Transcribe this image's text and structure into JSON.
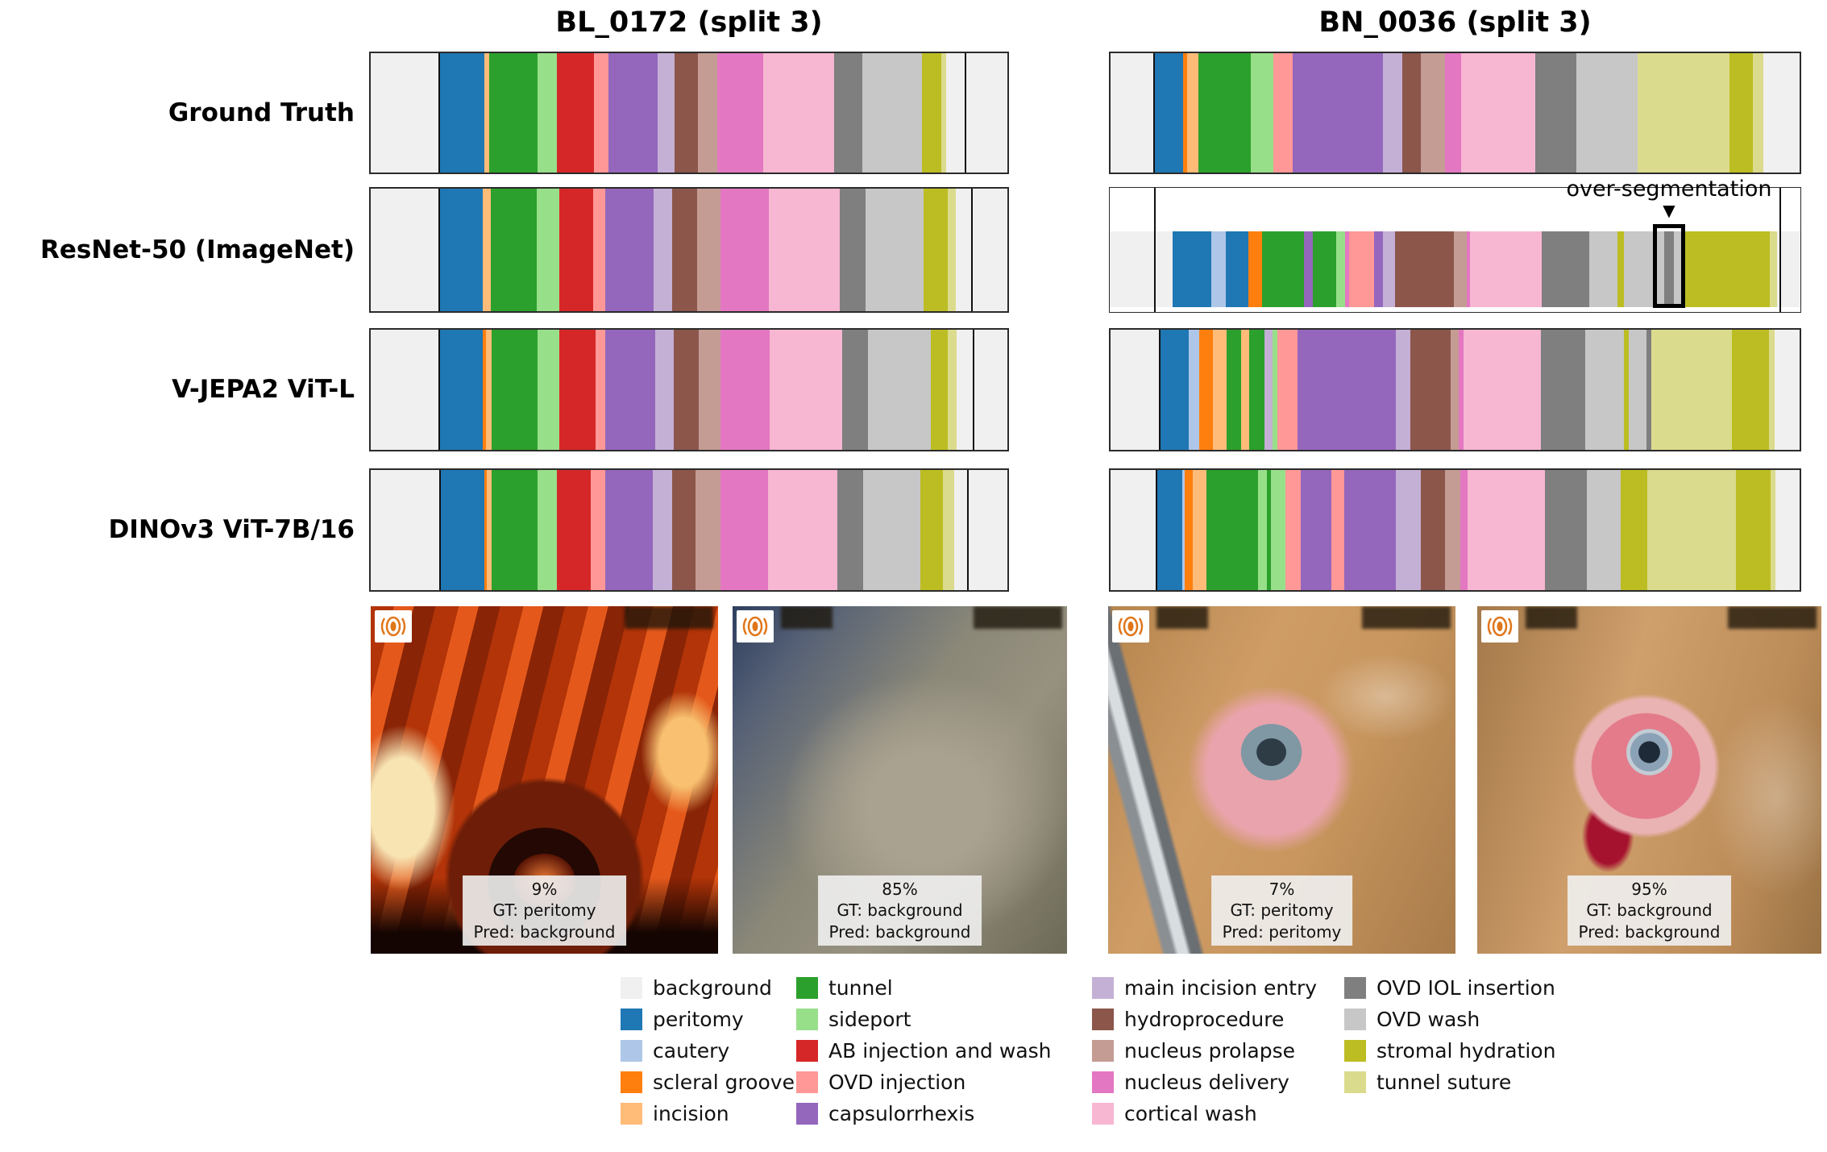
{
  "figure": {
    "columns": [
      {
        "id": "BL_0172",
        "title": "BL_0172 (split 3)"
      },
      {
        "id": "BN_0036",
        "title": "BN_0036 (split 3)"
      }
    ],
    "rows": [
      "Ground Truth",
      "ResNet-50 (ImageNet)",
      "V-JEPA2 ViT-L",
      "DINOv3 ViT-7B/16"
    ],
    "annotation": {
      "label": "over-segmentation",
      "marker": "▼"
    }
  },
  "phase_colors": {
    "bg": "#f0f0f0",
    "peritomy": "#1f77b4",
    "cautery": "#aec7e8",
    "scleral": "#ff7f0e",
    "incision": "#ffbb78",
    "tunnel": "#2ca02c",
    "sideport": "#98df8a",
    "ab": "#d62728",
    "ovd_inj": "#ff9896",
    "caps": "#9467bd",
    "main": "#c5b0d5",
    "hydro": "#8c564b",
    "prolapse": "#c49c94",
    "delivery": "#e377c2",
    "cortical": "#f7b6d2",
    "ovd_iol": "#7f7f7f",
    "ovd_wash": "#c7c7c7",
    "stromal": "#bcbd22",
    "suture": "#dbdb8d"
  },
  "legend": {
    "columns": [
      [
        {
          "key": "bg",
          "label": "background"
        },
        {
          "key": "peritomy",
          "label": "peritomy"
        },
        {
          "key": "cautery",
          "label": "cautery"
        },
        {
          "key": "scleral",
          "label": "scleral groove"
        },
        {
          "key": "incision",
          "label": "incision"
        }
      ],
      [
        {
          "key": "tunnel",
          "label": "tunnel"
        },
        {
          "key": "sideport",
          "label": "sideport"
        },
        {
          "key": "ab",
          "label": "AB injection and wash"
        },
        {
          "key": "ovd_inj",
          "label": "OVD injection"
        },
        {
          "key": "caps",
          "label": "capsulorrhexis"
        }
      ],
      [
        {
          "key": "main",
          "label": "main incision entry"
        },
        {
          "key": "hydro",
          "label": "hydroprocedure"
        },
        {
          "key": "prolapse",
          "label": "nucleus prolapse"
        },
        {
          "key": "delivery",
          "label": "nucleus delivery"
        },
        {
          "key": "cortical",
          "label": "cortical wash"
        }
      ],
      [
        {
          "key": "ovd_iol",
          "label": "OVD IOL insertion"
        },
        {
          "key": "ovd_wash",
          "label": "OVD wash"
        },
        {
          "key": "stromal",
          "label": "stromal hydration"
        },
        {
          "key": "suture",
          "label": "tunnel suture"
        }
      ]
    ]
  },
  "images": [
    {
      "pct": "9%",
      "gt": "GT: peritomy",
      "pred": "Pred: background"
    },
    {
      "pct": "85%",
      "gt": "GT: background",
      "pred": "Pred: background"
    },
    {
      "pct": "7%",
      "gt": "GT: peritomy",
      "pred": "Pred: peritomy"
    },
    {
      "pct": "95%",
      "gt": "GT: background",
      "pred": "Pred: background"
    }
  ],
  "chart_data": {
    "type": "bar",
    "subtype": "horizontal-phase-timeline",
    "title": "",
    "columns": [
      "BL_0172 (split 3)",
      "BN_0036 (split 3)"
    ],
    "rows": [
      "Ground Truth",
      "ResNet-50 (ImageNet)",
      "V-JEPA2 ViT-L",
      "DINOv3 ViT-7B/16"
    ],
    "unit": "percent_of_timeline_width",
    "legend_position": "bottom",
    "bars": {
      "bl": {
        "gt": [
          [
            "bg",
            10.6
          ],
          [
            "peritomy",
            7.3
          ],
          [
            "incision",
            0.7
          ],
          [
            "tunnel",
            7.6
          ],
          [
            "sideport",
            3.1
          ],
          [
            "ab",
            5.8
          ],
          [
            "ovd_inj",
            2.2
          ],
          [
            "caps",
            7.8
          ],
          [
            "main",
            2.6
          ],
          [
            "hydro",
            3.7
          ],
          [
            "prolapse",
            3.0
          ],
          [
            "delivery",
            7.3
          ],
          [
            "cortical",
            11.1
          ],
          [
            "ovd_iol",
            4.4
          ],
          [
            "ovd_wash",
            9.4
          ],
          [
            "stromal",
            3.0
          ],
          [
            "suture",
            0.8
          ],
          [
            "bg",
            2.9
          ],
          [
            "bg",
            6.7
          ]
        ],
        "resnet": [
          [
            "bg",
            10.6
          ],
          [
            "peritomy",
            7.0
          ],
          [
            "incision",
            1.2
          ],
          [
            "tunnel",
            7.3
          ],
          [
            "sideport",
            3.5
          ],
          [
            "ab",
            5.3
          ],
          [
            "ovd_inj",
            1.9
          ],
          [
            "caps",
            7.7
          ],
          [
            "main",
            2.9
          ],
          [
            "hydro",
            3.9
          ],
          [
            "prolapse",
            3.6
          ],
          [
            "delivery",
            7.7
          ],
          [
            "cortical",
            11.1
          ],
          [
            "ovd_iol",
            4.0
          ],
          [
            "ovd_wash",
            9.2
          ],
          [
            "stromal",
            3.7
          ],
          [
            "suture",
            1.3
          ],
          [
            "bg",
            2.4
          ],
          [
            "bg",
            5.7
          ]
        ],
        "vjepa": [
          [
            "bg",
            10.6
          ],
          [
            "peritomy",
            7.0
          ],
          [
            "scleral",
            0.5
          ],
          [
            "incision",
            0.9
          ],
          [
            "tunnel",
            7.2
          ],
          [
            "sideport",
            3.4
          ],
          [
            "ab",
            5.7
          ],
          [
            "ovd_inj",
            1.6
          ],
          [
            "caps",
            7.8
          ],
          [
            "main",
            2.9
          ],
          [
            "hydro",
            3.9
          ],
          [
            "prolapse",
            3.5
          ],
          [
            "delivery",
            7.7
          ],
          [
            "cortical",
            11.4
          ],
          [
            "ovd_iol",
            4.0
          ],
          [
            "ovd_wash",
            9.9
          ],
          [
            "stromal",
            2.6
          ],
          [
            "suture",
            1.5
          ],
          [
            "bg",
            2.4
          ],
          [
            "bg",
            5.5
          ]
        ],
        "dino": [
          [
            "bg",
            10.7
          ],
          [
            "peritomy",
            7.1
          ],
          [
            "scleral",
            0.4
          ],
          [
            "incision",
            0.8
          ],
          [
            "tunnel",
            7.2
          ],
          [
            "sideport",
            3.1
          ],
          [
            "ab",
            5.3
          ],
          [
            "ovd_inj",
            2.2
          ],
          [
            "caps",
            7.5
          ],
          [
            "main",
            3.0
          ],
          [
            "hydro",
            3.7
          ],
          [
            "prolapse",
            3.9
          ],
          [
            "delivery",
            7.5
          ],
          [
            "cortical",
            10.9
          ],
          [
            "ovd_iol",
            4.1
          ],
          [
            "ovd_wash",
            9.0
          ],
          [
            "stromal",
            3.5
          ],
          [
            "suture",
            1.7
          ],
          [
            "bg",
            2.1
          ],
          [
            "bg",
            6.3
          ]
        ]
      },
      "bn": {
        "gt": [
          [
            "bg",
            6.2
          ],
          [
            "peritomy",
            4.3
          ],
          [
            "scleral",
            0.6
          ],
          [
            "incision",
            1.7
          ],
          [
            "tunnel",
            7.5
          ],
          [
            "sideport",
            3.3
          ],
          [
            "ovd_inj",
            2.8
          ],
          [
            "caps",
            13.1
          ],
          [
            "main",
            2.8
          ],
          [
            "hydro",
            2.7
          ],
          [
            "prolapse",
            3.6
          ],
          [
            "delivery",
            2.3
          ],
          [
            "cortical",
            10.7
          ],
          [
            "ovd_iol",
            6.0
          ],
          [
            "ovd_wash",
            8.9
          ],
          [
            "suture",
            13.3
          ],
          [
            "stromal",
            3.4
          ],
          [
            "suture",
            1.5
          ],
          [
            "bg",
            5.3
          ]
        ],
        "resnet": [
          [
            "bg",
            9.1
          ],
          [
            "peritomy",
            5.6
          ],
          [
            "cautery",
            2.1
          ],
          [
            "peritomy",
            3.3
          ],
          [
            "scleral",
            1.9
          ],
          [
            "tunnel",
            6.1
          ],
          [
            "caps",
            1.3
          ],
          [
            "tunnel",
            3.4
          ],
          [
            "sideport",
            1.3
          ],
          [
            "delivery",
            0.6
          ],
          [
            "ovd_inj",
            3.6
          ],
          [
            "caps",
            1.3
          ],
          [
            "main",
            1.7
          ],
          [
            "hydro",
            8.5
          ],
          [
            "prolapse",
            1.9
          ],
          [
            "delivery",
            0.5
          ],
          [
            "cortical",
            10.4
          ],
          [
            "ovd_iol",
            6.8
          ],
          [
            "ovd_wash",
            4.1
          ],
          [
            "stromal",
            1.0
          ],
          [
            "ovd_wash",
            4.1
          ],
          [
            "ovd_wash",
            1.7
          ],
          [
            "ovd_iol",
            1.4
          ],
          [
            "ovd_wash",
            1.6
          ],
          [
            "stromal",
            12.3
          ],
          [
            "suture",
            1.0
          ],
          [
            "bg",
            3.4
          ]
        ],
        "vjepa": [
          [
            "bg",
            7.0
          ],
          [
            "peritomy",
            4.3
          ],
          [
            "cautery",
            1.6
          ],
          [
            "scleral",
            2.0
          ],
          [
            "incision",
            1.9
          ],
          [
            "tunnel",
            2.2
          ],
          [
            "incision",
            1.1
          ],
          [
            "tunnel",
            2.3
          ],
          [
            "main",
            1.1
          ],
          [
            "sideport",
            0.7
          ],
          [
            "ovd_inj",
            2.9
          ],
          [
            "caps",
            14.3
          ],
          [
            "main",
            2.1
          ],
          [
            "hydro",
            5.9
          ],
          [
            "prolapse",
            1.1
          ],
          [
            "delivery",
            0.8
          ],
          [
            "cortical",
            11.2
          ],
          [
            "ovd_iol",
            6.4
          ],
          [
            "ovd_wash",
            5.6
          ],
          [
            "stromal",
            0.7
          ],
          [
            "ovd_wash",
            2.6
          ],
          [
            "ovd_iol",
            0.7
          ],
          [
            "suture",
            11.7
          ],
          [
            "stromal",
            5.4
          ],
          [
            "suture",
            0.8
          ],
          [
            "bg",
            3.6
          ]
        ],
        "dino": [
          [
            "bg",
            6.5
          ],
          [
            "peritomy",
            3.9
          ],
          [
            "cautery",
            0.4
          ],
          [
            "scleral",
            1.1
          ],
          [
            "incision",
            2.0
          ],
          [
            "tunnel",
            7.5
          ],
          [
            "sideport",
            1.3
          ],
          [
            "tunnel",
            0.6
          ],
          [
            "sideport",
            2.1
          ],
          [
            "ovd_inj",
            2.2
          ],
          [
            "caps",
            4.4
          ],
          [
            "ovd_inj",
            1.9
          ],
          [
            "caps",
            7.5
          ],
          [
            "main",
            3.6
          ],
          [
            "hydro",
            3.5
          ],
          [
            "prolapse",
            2.3
          ],
          [
            "delivery",
            1.0
          ],
          [
            "cortical",
            11.2
          ],
          [
            "ovd_iol",
            6.1
          ],
          [
            "ovd_wash",
            4.9
          ],
          [
            "stromal",
            3.9
          ],
          [
            "suture",
            12.9
          ],
          [
            "stromal",
            5.0
          ],
          [
            "suture",
            0.7
          ],
          [
            "bg",
            3.5
          ]
        ]
      }
    },
    "boundary_lines": {
      "bl": {
        "gt": [
          10.6,
          93.3
        ],
        "resnet": [
          10.6,
          94.3
        ],
        "vjepa": [
          10.6,
          94.5
        ],
        "dino": [
          10.7,
          93.7
        ]
      },
      "bn": {
        "gt": [
          6.2
        ],
        "resnet": [
          6.4,
          97.0
        ],
        "vjepa": [
          7.0
        ],
        "dino": [
          6.5
        ]
      }
    },
    "over_segmentation_box": {
      "row": "resnet",
      "column": "bn",
      "left_pct": 78.6,
      "width_pct": 4.7
    },
    "frame_captions": [
      {
        "column": "BL_0172",
        "confidence": "9%",
        "gt": "peritomy",
        "pred": "background"
      },
      {
        "column": "BL_0172",
        "confidence": "85%",
        "gt": "background",
        "pred": "background"
      },
      {
        "column": "BN_0036",
        "confidence": "7%",
        "gt": "peritomy",
        "pred": "peritomy"
      },
      {
        "column": "BN_0036",
        "confidence": "95%",
        "gt": "background",
        "pred": "background"
      }
    ]
  }
}
